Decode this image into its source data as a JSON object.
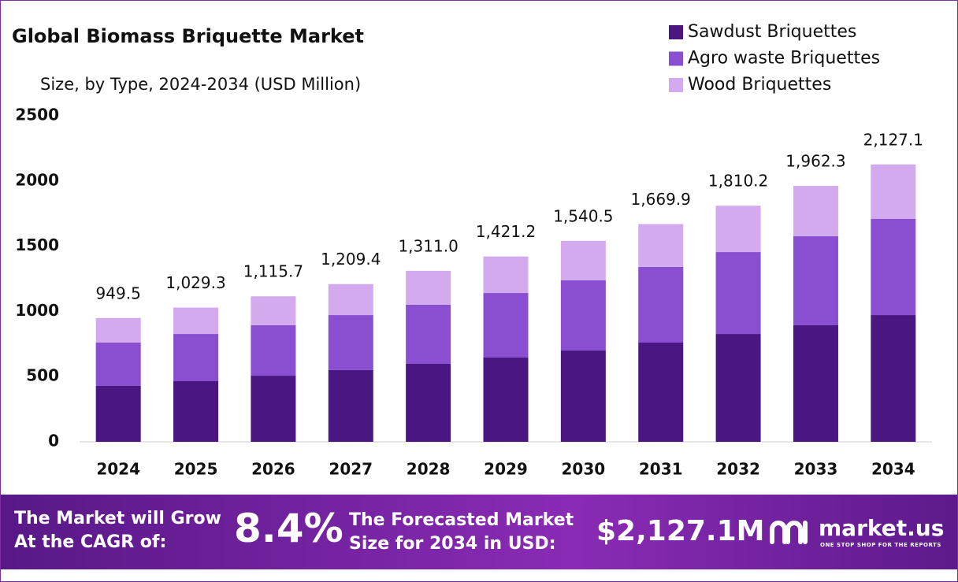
{
  "chart_data": {
    "type": "stacked_bar",
    "title": "Global Biomass Briquette Market",
    "subtitle": "Size, by Type, 2024-2034 (USD Million)",
    "categories": [
      "2024",
      "2025",
      "2026",
      "2027",
      "2028",
      "2029",
      "2030",
      "2031",
      "2032",
      "2033",
      "2034"
    ],
    "series": [
      {
        "name": "Sawdust Briquettes",
        "color": "#4a1782",
        "values": [
          429,
          465,
          507,
          550,
          598,
          646,
          700,
          761,
          827,
          894,
          972
        ]
      },
      {
        "name": "Agro waste Briquettes",
        "color": "#8a4fd0",
        "values": [
          332,
          362,
          387,
          422,
          453,
          495,
          538,
          580,
          628,
          682,
          737
        ]
      },
      {
        "name": "Wood Briquettes",
        "color": "#d3aaed",
        "values": [
          188.5,
          202.3,
          221.7,
          237.4,
          260,
          280.2,
          302.5,
          328.9,
          355.2,
          386.3,
          418.1
        ]
      }
    ],
    "totals": {
      "values": [
        949.5,
        1029.3,
        1115.7,
        1209.4,
        1311.0,
        1421.2,
        1540.5,
        1669.9,
        1810.2,
        1962.3,
        2127.1
      ],
      "value_labels": [
        "949.5",
        "1,029.3",
        "1,115.7",
        "1,209.4",
        "1,311.0",
        "1,421.2",
        "1,540.5",
        "1,669.9",
        "1,810.2",
        "1,962.3",
        "2,127.1"
      ]
    },
    "ylim": [
      0,
      2500
    ],
    "yticks": [
      0,
      500,
      1000,
      1500,
      2000,
      2500
    ],
    "grid": false,
    "legend": "top-right"
  },
  "footer": {
    "cagr_text_1": "The Market will Grow",
    "cagr_text_2": "At the CAGR of:",
    "cagr": "8.4%",
    "forecast_text_1": "The Forecasted Market",
    "forecast_text_2": "Size for 2034 in USD:",
    "forecast": "$2,127.1M",
    "brand": "market.us",
    "tagline": "ONE STOP SHOP FOR THE REPORTS"
  }
}
